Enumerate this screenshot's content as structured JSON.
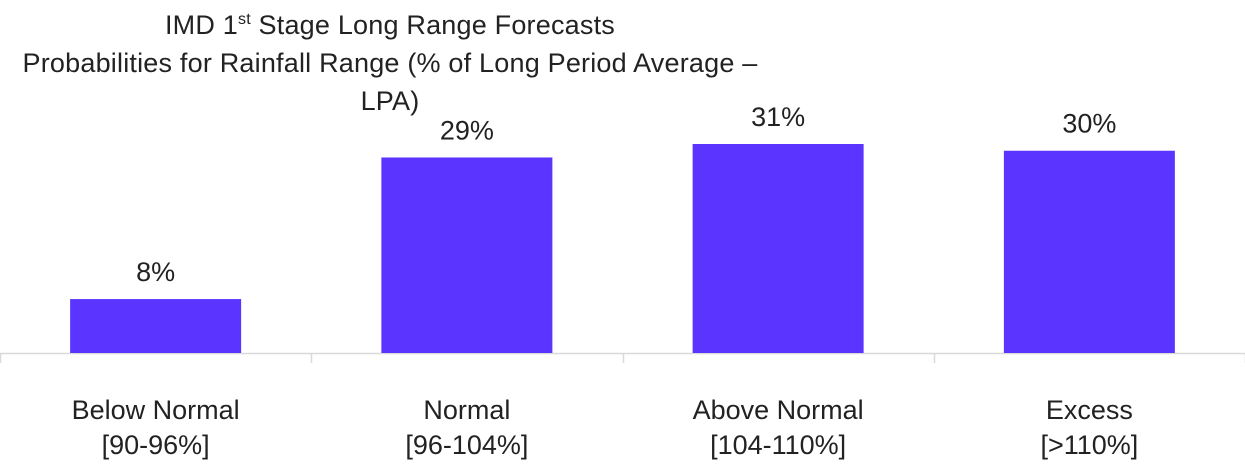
{
  "chart_data": {
    "type": "bar",
    "title_prefix": "IMD 1",
    "title_superscript": "st",
    "title_suffix": " Stage Long Range Forecasts",
    "subtitle": "Probabilities for Rainfall Range (% of Long Period Average – LPA)",
    "categories": [
      "Below Normal",
      "Normal",
      "Above Normal",
      "Excess"
    ],
    "category_ranges": [
      "[90-96%]",
      "[96-104%]",
      "[104-110%]",
      "[>110%]"
    ],
    "values": [
      8,
      29,
      31,
      30
    ],
    "data_labels": [
      "8%",
      "29%",
      "31%",
      "30%"
    ],
    "xlabel": "",
    "ylabel": "",
    "ylim": [
      0,
      31
    ],
    "grid": false,
    "legend": "none",
    "bar_color": "#5B35FF",
    "axis_color": "#D9D9D9"
  }
}
